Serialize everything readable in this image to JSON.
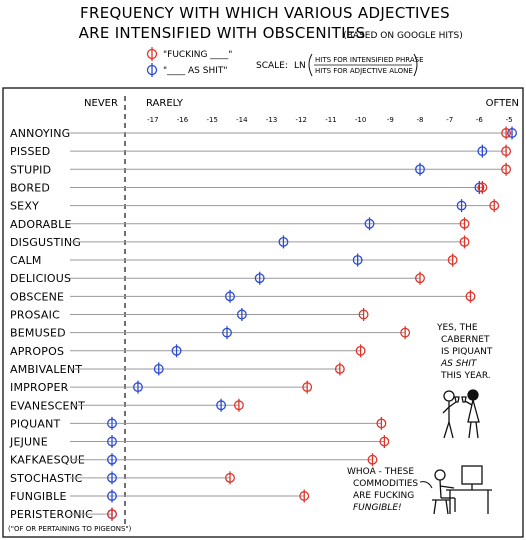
{
  "header": {
    "title_line1": "FREQUENCY WITH WHICH VARIOUS ADJECTIVES",
    "title_line2": "ARE INTENSIFIED WITH OBSCENITIES",
    "title_note": "(BASED ON GOOGLE HITS)"
  },
  "legend": {
    "red_label": "\"FUCKING ____\"",
    "blue_label": "\"____ AS SHIT\"",
    "scale_label": "SCALE:",
    "scale_fn": "LN",
    "scale_num": "HITS FOR INTENSIFIED PHRASE",
    "scale_den": "HITS FOR ADJECTIVE ALONE"
  },
  "axis": {
    "never_label": "NEVER",
    "rarely_label": "RARELY",
    "often_label": "OFTEN"
  },
  "annotations": {
    "pigeons_note": "(\"OF OR PERTAINING TO PIGEONS\")",
    "speech1": [
      "YES, THE",
      "CABERNET",
      "IS PIQUANT",
      "AS SHIT",
      "THIS YEAR."
    ],
    "speech2": [
      "WHOA - THESE",
      "COMMODITIES",
      "ARE FUCKING",
      "FUNGIBLE!"
    ]
  },
  "colors": {
    "red": "#e0342b",
    "blue": "#2b4bd6",
    "line": "#9a9a9a",
    "ink": "#111111"
  },
  "chart_data": {
    "type": "scatter",
    "title": "FREQUENCY WITH WHICH VARIOUS ADJECTIVES ARE INTENSIFIED WITH OBSCENITIES",
    "xlim": [
      -17.6,
      -4.8
    ],
    "xticks": [
      -17,
      -16,
      -15,
      -14,
      -13,
      -12,
      -11,
      -10,
      -9,
      -8,
      -7,
      -6,
      -5
    ],
    "xtick_labels": [
      "-17",
      "-16",
      "-15",
      "-14",
      "-13",
      "-12",
      "-11",
      "-10",
      "-9",
      "-8",
      "-7",
      "-6",
      "-5"
    ],
    "categories": [
      "ANNOYING",
      "PISSED",
      "STUPID",
      "BORED",
      "SEXY",
      "ADORABLE",
      "DISGUSTING",
      "CALM",
      "DELICIOUS",
      "OBSCENE",
      "PROSAIC",
      "BEMUSED",
      "APROPOS",
      "AMBIVALENT",
      "IMPROPER",
      "EVANESCENT",
      "PIQUANT",
      "JEJUNE",
      "KAFKAESQUE",
      "STOCHASTIC",
      "FUNGIBLE",
      "PERISTERONIC"
    ],
    "series": [
      {
        "name": "\"FUCKING ____\"",
        "marker": "red",
        "values": [
          -5.1,
          -5.1,
          -5.1,
          -5.9,
          -5.5,
          -6.5,
          -6.5,
          -6.9,
          -8.0,
          -6.3,
          -9.9,
          -8.5,
          -10.0,
          -10.7,
          -11.8,
          -14.1,
          -9.3,
          -9.2,
          -9.6,
          -14.4,
          -11.9,
          null
        ]
      },
      {
        "name": "\"____ AS SHIT\"",
        "marker": "blue",
        "values": [
          -4.9,
          -5.9,
          -8.0,
          -6.0,
          -6.6,
          -9.7,
          -12.6,
          -10.1,
          -13.4,
          -14.4,
          -14.0,
          -14.5,
          -16.2,
          -16.8,
          -17.5,
          -14.7,
          null,
          null,
          null,
          null,
          null,
          null
        ]
      }
    ]
  }
}
